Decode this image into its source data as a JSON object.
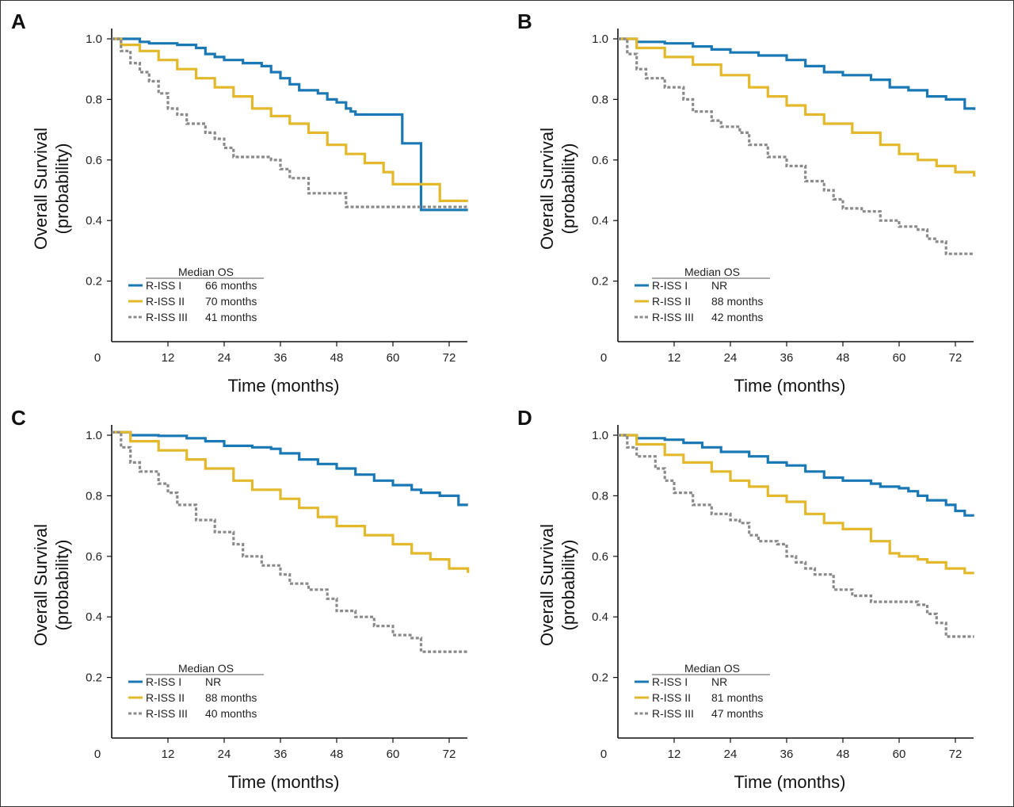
{
  "figure": {
    "colors": {
      "r_iss_1": "#1a78b4",
      "r_iss_2": "#e3b82a",
      "r_iss_3": "#8a8a8a",
      "axis": "#111111"
    }
  },
  "chart_data": [
    {
      "panel": "A",
      "type": "line",
      "subtype": "kaplan-meier step",
      "xlabel": "Time (months)",
      "ylabel": "Overall Survival (probability)",
      "xticks": [
        "0",
        "12",
        "24",
        "36",
        "48",
        "60",
        "72"
      ],
      "yticks": [
        "0.2",
        "0.4",
        "0.6",
        "0.8",
        "1.0"
      ],
      "xlim": [
        0,
        76
      ],
      "ylim": [
        0,
        1.0
      ],
      "legend_title": "Median OS",
      "legend_position": "bottom-left",
      "series": [
        {
          "name": "R-ISS I",
          "median": "66 months",
          "style": "solid",
          "x": [
            0,
            6,
            8,
            14,
            18,
            20,
            22,
            24,
            28,
            32,
            34,
            36,
            38,
            40,
            44,
            46,
            48,
            50,
            51,
            52,
            62,
            66,
            76
          ],
          "y": [
            1.0,
            0.99,
            0.985,
            0.98,
            0.97,
            0.95,
            0.94,
            0.93,
            0.92,
            0.91,
            0.89,
            0.87,
            0.85,
            0.83,
            0.82,
            0.8,
            0.79,
            0.77,
            0.76,
            0.75,
            0.655,
            0.435,
            0.435
          ]
        },
        {
          "name": "R-ISS II",
          "median": "70 months",
          "style": "solid",
          "x": [
            0,
            2,
            6,
            10,
            14,
            18,
            22,
            26,
            30,
            34,
            38,
            42,
            46,
            50,
            54,
            58,
            60,
            70,
            76
          ],
          "y": [
            1.0,
            0.98,
            0.96,
            0.93,
            0.9,
            0.87,
            0.84,
            0.81,
            0.77,
            0.745,
            0.72,
            0.69,
            0.65,
            0.62,
            0.59,
            0.56,
            0.52,
            0.465,
            0.465
          ]
        },
        {
          "name": "R-ISS III",
          "median": "41 months",
          "style": "dashed",
          "x": [
            0,
            2,
            4,
            6,
            8,
            10,
            12,
            14,
            16,
            20,
            22,
            24,
            26,
            34,
            36,
            38,
            42,
            50,
            76
          ],
          "y": [
            1.0,
            0.96,
            0.92,
            0.89,
            0.86,
            0.82,
            0.77,
            0.75,
            0.72,
            0.69,
            0.67,
            0.64,
            0.61,
            0.6,
            0.57,
            0.54,
            0.49,
            0.445,
            0.445
          ]
        }
      ]
    },
    {
      "panel": "B",
      "type": "line",
      "subtype": "kaplan-meier step",
      "xlabel": "Time (months)",
      "ylabel": "Overall Survival (probability)",
      "xticks": [
        "0",
        "12",
        "24",
        "36",
        "48",
        "60",
        "72"
      ],
      "yticks": [
        "0.2",
        "0.4",
        "0.6",
        "0.8",
        "1.0"
      ],
      "xlim": [
        0,
        76
      ],
      "ylim": [
        0,
        1.0
      ],
      "legend_title": "Median OS",
      "legend_position": "bottom-left",
      "series": [
        {
          "name": "R-ISS I",
          "median": "NR",
          "style": "solid",
          "x": [
            0,
            4,
            10,
            16,
            20,
            24,
            30,
            36,
            40,
            44,
            48,
            54,
            58,
            62,
            66,
            70,
            74,
            76
          ],
          "y": [
            1.0,
            0.99,
            0.985,
            0.975,
            0.965,
            0.955,
            0.945,
            0.93,
            0.91,
            0.89,
            0.88,
            0.865,
            0.84,
            0.83,
            0.81,
            0.8,
            0.77,
            0.765
          ]
        },
        {
          "name": "R-ISS II",
          "median": "88 months",
          "style": "solid",
          "x": [
            0,
            4,
            10,
            16,
            22,
            28,
            32,
            36,
            40,
            44,
            50,
            56,
            60,
            64,
            68,
            72,
            76
          ],
          "y": [
            1.0,
            0.97,
            0.94,
            0.915,
            0.88,
            0.84,
            0.81,
            0.78,
            0.75,
            0.72,
            0.69,
            0.65,
            0.62,
            0.6,
            0.58,
            0.56,
            0.545
          ]
        },
        {
          "name": "R-ISS III",
          "median": "42 months",
          "style": "dashed",
          "x": [
            0,
            2,
            4,
            6,
            10,
            14,
            16,
            20,
            22,
            26,
            28,
            32,
            36,
            40,
            44,
            46,
            48,
            52,
            56,
            60,
            64,
            66,
            68,
            70,
            76
          ],
          "y": [
            1.0,
            0.95,
            0.9,
            0.87,
            0.84,
            0.8,
            0.76,
            0.73,
            0.71,
            0.69,
            0.65,
            0.61,
            0.58,
            0.53,
            0.5,
            0.47,
            0.44,
            0.43,
            0.4,
            0.38,
            0.37,
            0.34,
            0.33,
            0.29,
            0.29
          ]
        }
      ]
    },
    {
      "panel": "C",
      "type": "line",
      "subtype": "kaplan-meier step",
      "xlabel": "Time (months)",
      "ylabel": "Overall Survival (probability)",
      "xticks": [
        "0",
        "12",
        "24",
        "36",
        "48",
        "60",
        "72"
      ],
      "yticks": [
        "0.2",
        "0.4",
        "0.6",
        "0.8",
        "1.0"
      ],
      "xlim": [
        0,
        76
      ],
      "ylim": [
        0,
        1.0
      ],
      "legend_title": "Median OS",
      "legend_position": "bottom-left",
      "series": [
        {
          "name": "R-ISS I",
          "median": "NR",
          "style": "solid",
          "x": [
            0,
            4,
            10,
            16,
            20,
            24,
            30,
            34,
            36,
            40,
            44,
            48,
            52,
            56,
            60,
            64,
            66,
            70,
            74,
            76
          ],
          "y": [
            1.01,
            1.0,
            0.998,
            0.99,
            0.98,
            0.965,
            0.96,
            0.955,
            0.94,
            0.92,
            0.905,
            0.89,
            0.87,
            0.85,
            0.835,
            0.82,
            0.81,
            0.8,
            0.77,
            0.77
          ]
        },
        {
          "name": "R-ISS II",
          "median": "88 months",
          "style": "solid",
          "x": [
            0,
            4,
            10,
            16,
            20,
            26,
            30,
            36,
            40,
            44,
            48,
            54,
            60,
            64,
            68,
            72,
            76
          ],
          "y": [
            1.01,
            0.98,
            0.95,
            0.92,
            0.89,
            0.85,
            0.82,
            0.79,
            0.76,
            0.73,
            0.7,
            0.67,
            0.64,
            0.61,
            0.59,
            0.56,
            0.545
          ]
        },
        {
          "name": "R-ISS III",
          "median": "40 months",
          "style": "dashed",
          "x": [
            0,
            2,
            4,
            6,
            10,
            12,
            14,
            18,
            22,
            26,
            28,
            32,
            36,
            38,
            42,
            46,
            48,
            52,
            56,
            60,
            64,
            66,
            76
          ],
          "y": [
            1.01,
            0.96,
            0.91,
            0.88,
            0.84,
            0.81,
            0.77,
            0.72,
            0.68,
            0.64,
            0.6,
            0.57,
            0.54,
            0.51,
            0.49,
            0.46,
            0.42,
            0.4,
            0.37,
            0.34,
            0.33,
            0.285,
            0.285
          ]
        }
      ]
    },
    {
      "panel": "D",
      "type": "line",
      "subtype": "kaplan-meier step",
      "xlabel": "Time (months)",
      "ylabel": "Overall Survival (probability)",
      "xticks": [
        "0",
        "12",
        "24",
        "36",
        "48",
        "60",
        "72"
      ],
      "yticks": [
        "0.2",
        "0.4",
        "0.6",
        "0.8",
        "1.0"
      ],
      "xlim": [
        0,
        76
      ],
      "ylim": [
        0,
        1.0
      ],
      "legend_title": "Median OS",
      "legend_position": "bottom-left",
      "series": [
        {
          "name": "R-ISS I",
          "median": "NR",
          "style": "solid",
          "x": [
            0,
            4,
            10,
            14,
            18,
            22,
            28,
            32,
            36,
            40,
            44,
            48,
            54,
            56,
            60,
            62,
            64,
            66,
            70,
            72,
            74,
            76
          ],
          "y": [
            1.0,
            0.99,
            0.985,
            0.975,
            0.96,
            0.945,
            0.93,
            0.91,
            0.9,
            0.88,
            0.86,
            0.85,
            0.84,
            0.83,
            0.825,
            0.815,
            0.8,
            0.785,
            0.77,
            0.75,
            0.735,
            0.735
          ]
        },
        {
          "name": "R-ISS II",
          "median": "81 months",
          "style": "solid",
          "x": [
            0,
            4,
            10,
            14,
            20,
            24,
            28,
            32,
            36,
            40,
            44,
            48,
            54,
            58,
            60,
            64,
            66,
            70,
            74,
            76
          ],
          "y": [
            1.0,
            0.97,
            0.935,
            0.91,
            0.88,
            0.85,
            0.83,
            0.8,
            0.78,
            0.74,
            0.71,
            0.69,
            0.65,
            0.61,
            0.6,
            0.59,
            0.58,
            0.56,
            0.545,
            0.545
          ]
        },
        {
          "name": "R-ISS III",
          "median": "47 months",
          "style": "dashed",
          "x": [
            0,
            2,
            4,
            8,
            10,
            12,
            16,
            20,
            24,
            26,
            28,
            30,
            34,
            36,
            38,
            40,
            42,
            46,
            50,
            54,
            64,
            66,
            68,
            70,
            76
          ],
          "y": [
            1.0,
            0.96,
            0.93,
            0.89,
            0.85,
            0.81,
            0.77,
            0.74,
            0.72,
            0.71,
            0.67,
            0.65,
            0.64,
            0.6,
            0.58,
            0.56,
            0.54,
            0.49,
            0.47,
            0.45,
            0.44,
            0.41,
            0.38,
            0.335,
            0.335
          ]
        }
      ]
    }
  ]
}
